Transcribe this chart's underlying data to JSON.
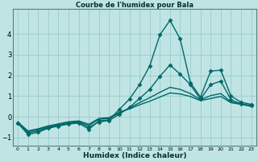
{
  "title": "Courbe de l'humidex pour Bala",
  "xlabel": "Humidex (Indice chaleur)",
  "ylabel": "",
  "background_color": "#c0e4e4",
  "grid_color": "#98cccc",
  "line_color": "#006868",
  "xlim": [
    -0.5,
    23.5
  ],
  "ylim": [
    -1.4,
    5.2
  ],
  "xticks": [
    0,
    1,
    2,
    3,
    4,
    5,
    6,
    7,
    8,
    9,
    10,
    11,
    12,
    13,
    14,
    15,
    16,
    17,
    18,
    19,
    20,
    21,
    22,
    23
  ],
  "yticks": [
    -1,
    0,
    1,
    2,
    3,
    4
  ],
  "series": [
    {
      "x": [
        0,
        1,
        2,
        3,
        4,
        5,
        6,
        7,
        8,
        9,
        10,
        11,
        12,
        13,
        14,
        15,
        16,
        17,
        18,
        19,
        20,
        21,
        22,
        23
      ],
      "y": [
        -0.3,
        -0.85,
        -0.75,
        -0.55,
        -0.45,
        -0.35,
        -0.3,
        -0.6,
        -0.2,
        -0.15,
        0.35,
        0.85,
        1.55,
        2.45,
        3.95,
        4.65,
        3.75,
        1.65,
        0.95,
        2.2,
        2.25,
        1.0,
        0.7,
        0.6
      ],
      "marker": "D",
      "markersize": 2.5,
      "linewidth": 1.0
    },
    {
      "x": [
        0,
        1,
        2,
        3,
        4,
        5,
        6,
        7,
        8,
        9,
        10,
        11,
        12,
        13,
        14,
        15,
        16,
        17,
        18,
        19,
        20,
        21,
        22,
        23
      ],
      "y": [
        -0.3,
        -0.78,
        -0.68,
        -0.52,
        -0.42,
        -0.32,
        -0.28,
        -0.5,
        -0.25,
        -0.18,
        0.12,
        0.45,
        0.88,
        1.32,
        1.95,
        2.5,
        2.05,
        1.55,
        0.85,
        1.55,
        1.72,
        0.82,
        0.62,
        0.55
      ],
      "marker": "D",
      "markersize": 2.5,
      "linewidth": 1.0
    },
    {
      "x": [
        0,
        1,
        2,
        3,
        4,
        5,
        6,
        7,
        8,
        9,
        10,
        11,
        12,
        13,
        14,
        15,
        16,
        17,
        18,
        19,
        20,
        21,
        22,
        23
      ],
      "y": [
        -0.28,
        -0.72,
        -0.62,
        -0.48,
        -0.38,
        -0.28,
        -0.23,
        -0.42,
        -0.12,
        -0.08,
        0.18,
        0.42,
        0.68,
        0.92,
        1.18,
        1.42,
        1.32,
        1.12,
        0.82,
        1.02,
        1.12,
        0.72,
        0.62,
        0.52
      ],
      "marker": null,
      "markersize": 0,
      "linewidth": 1.0
    },
    {
      "x": [
        0,
        1,
        2,
        3,
        4,
        5,
        6,
        7,
        8,
        9,
        10,
        11,
        12,
        13,
        14,
        15,
        16,
        17,
        18,
        19,
        20,
        21,
        22,
        23
      ],
      "y": [
        -0.25,
        -0.68,
        -0.58,
        -0.44,
        -0.34,
        -0.24,
        -0.2,
        -0.36,
        -0.08,
        -0.04,
        0.22,
        0.38,
        0.58,
        0.75,
        0.95,
        1.15,
        1.1,
        0.98,
        0.78,
        0.88,
        0.98,
        0.68,
        0.6,
        0.5
      ],
      "marker": null,
      "markersize": 0,
      "linewidth": 1.0
    }
  ]
}
